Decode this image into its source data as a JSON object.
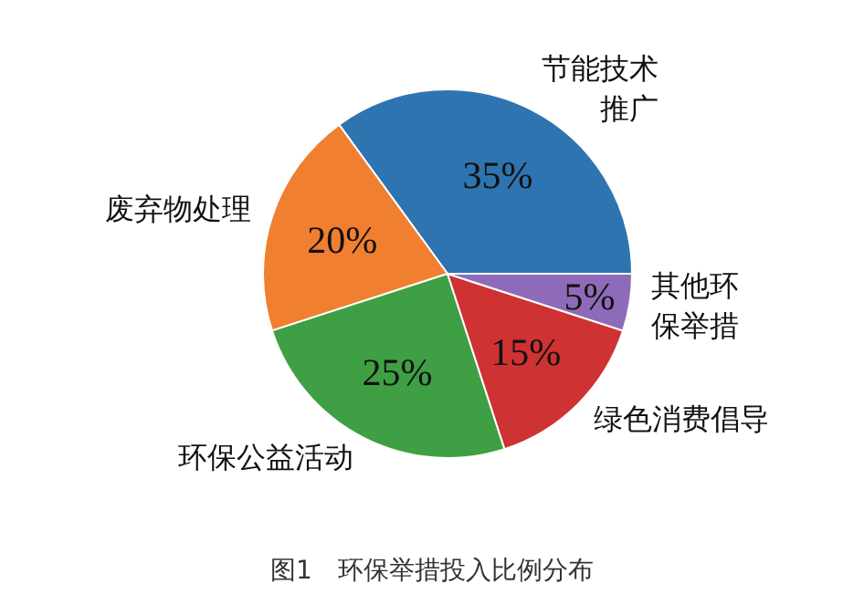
{
  "chart_data": {
    "type": "pie",
    "title": "图1　环保举措投入比例分布",
    "categories": [
      "节能技术推广",
      "废弃物处理",
      "环保公益活动",
      "绿色消费倡导",
      "其他环保举措"
    ],
    "values": [
      35,
      20,
      25,
      15,
      5
    ],
    "colors": [
      "#2e74b0",
      "#f07f30",
      "#3f9f45",
      "#cf3232",
      "#8e6bb8"
    ],
    "value_labels": [
      "35%",
      "20%",
      "25%",
      "15%",
      "5%"
    ]
  }
}
